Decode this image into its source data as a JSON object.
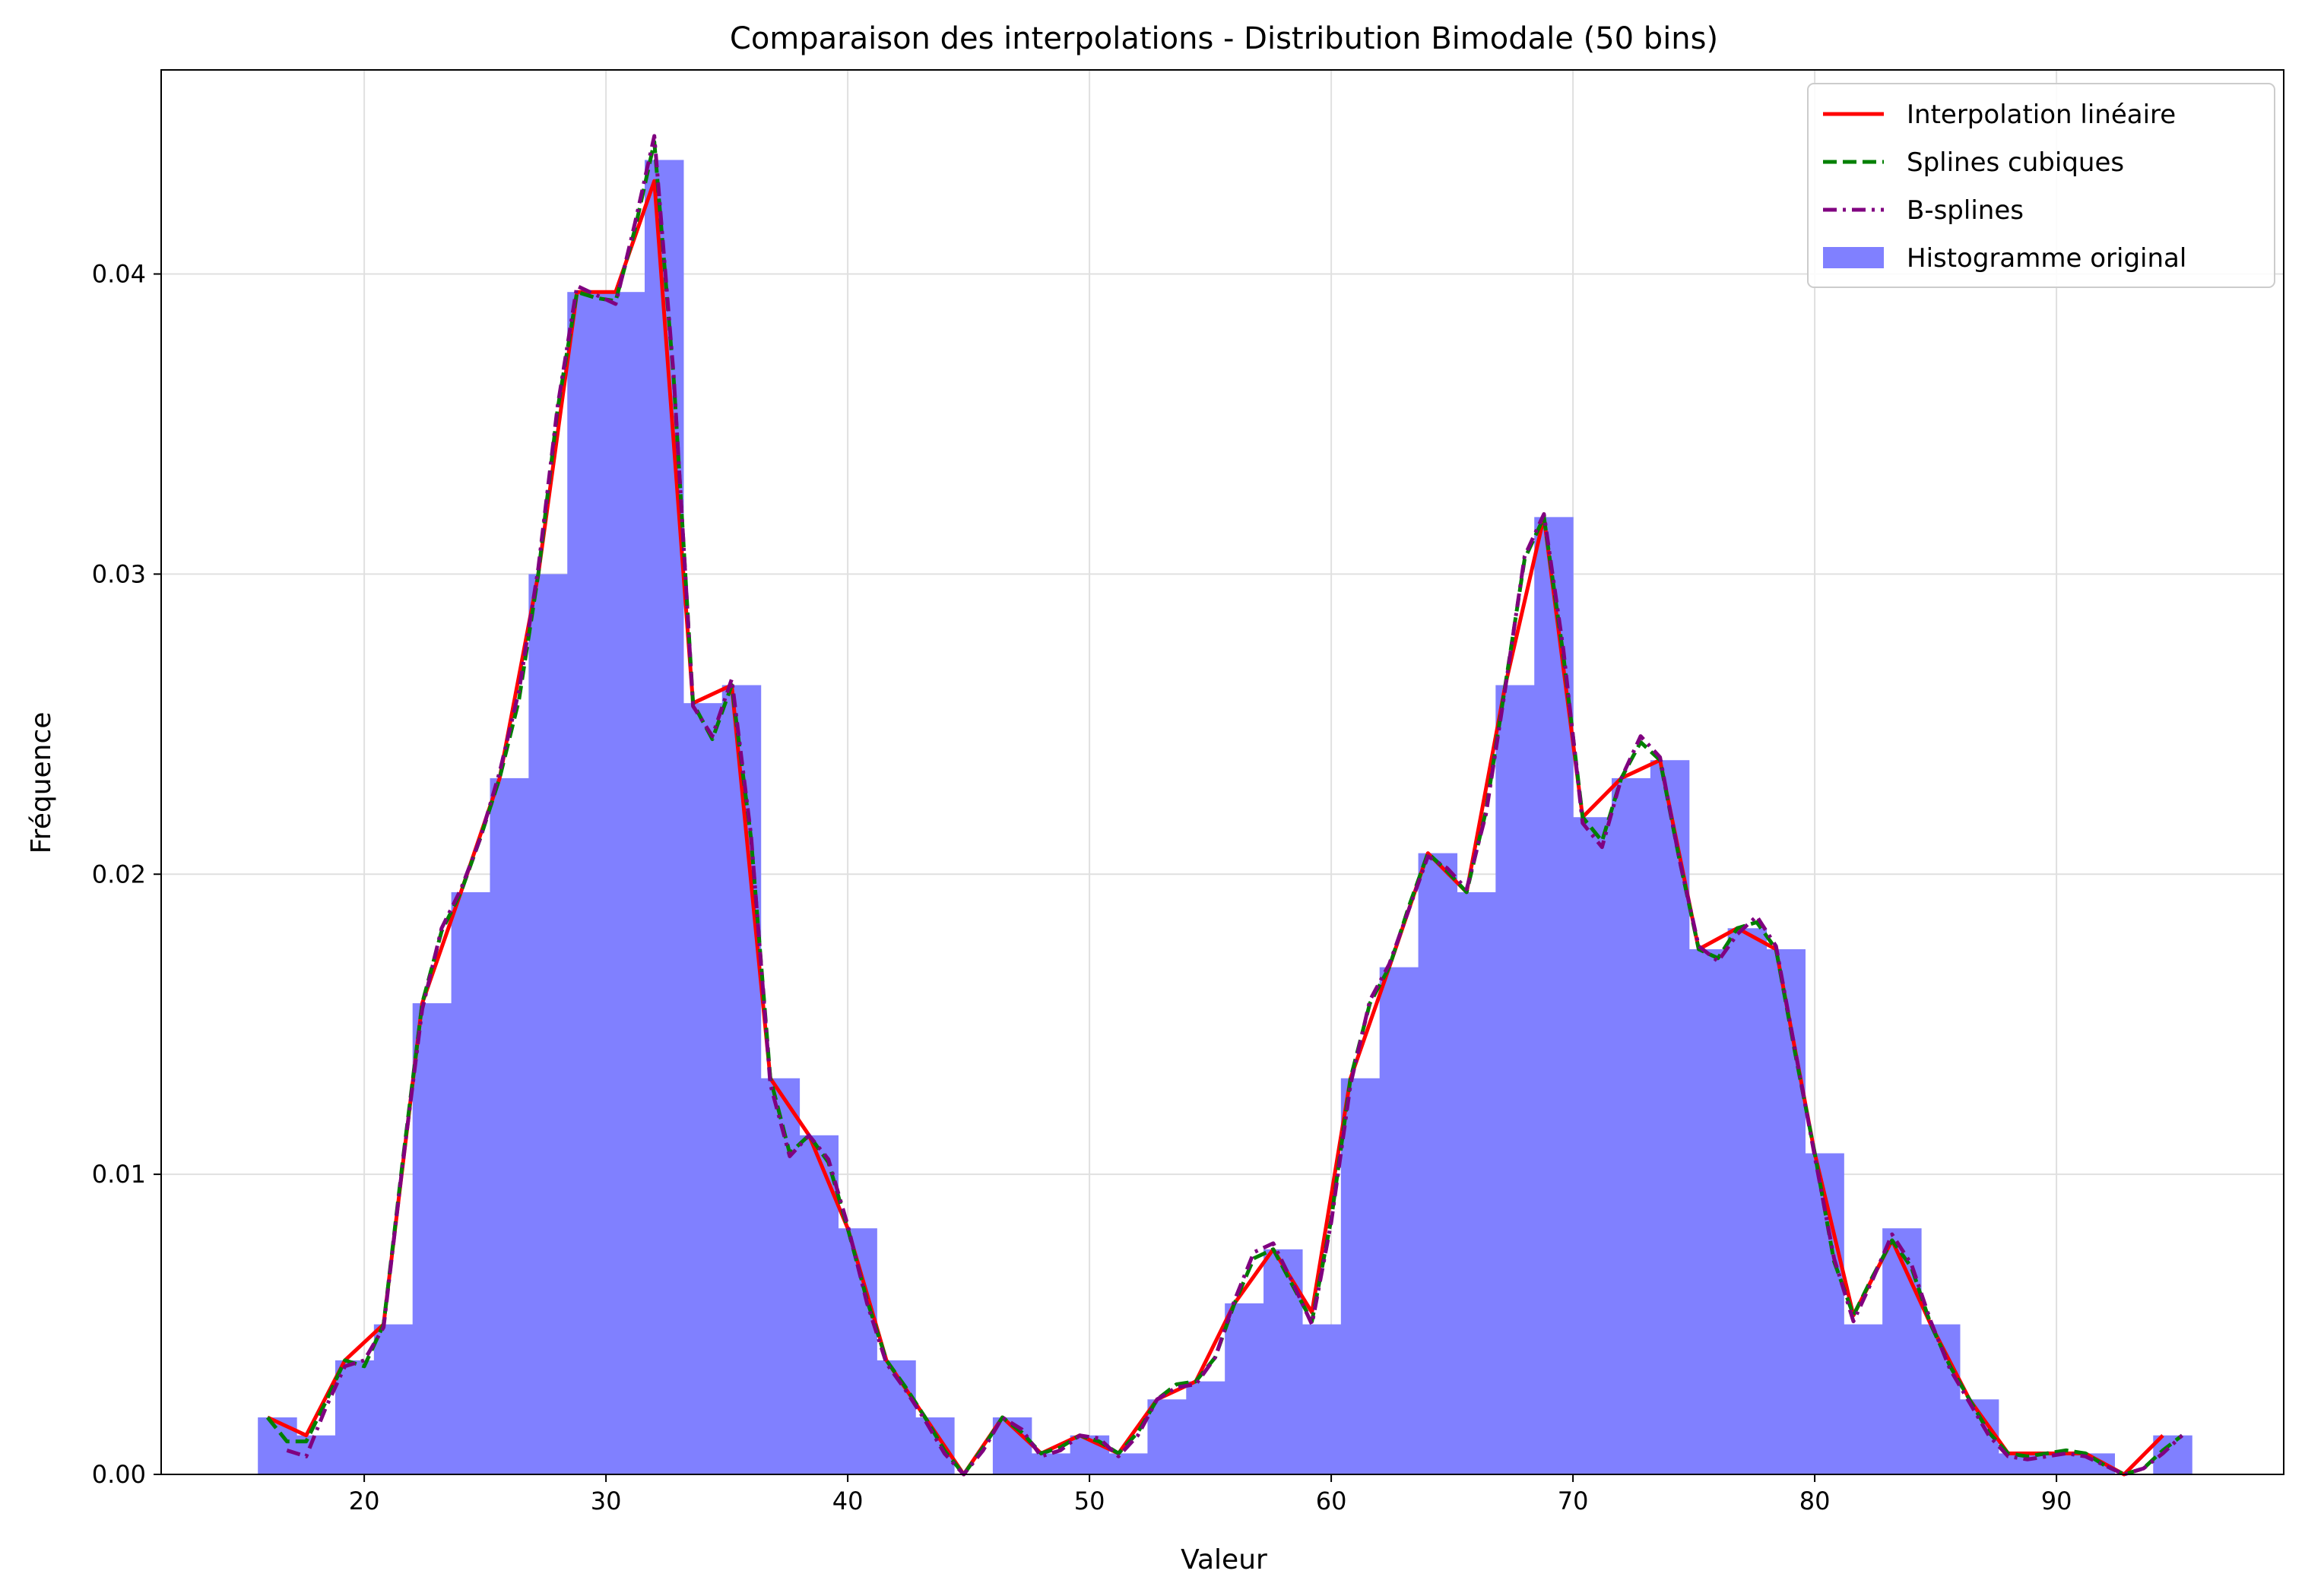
{
  "chart_data": {
    "type": "bar",
    "title": "Comparaison des interpolations - Distribution Bimodale (50 bins)",
    "xlabel": "Valeur",
    "ylabel": "Fréquence",
    "xlim": [
      11.6,
      99.4
    ],
    "ylim": [
      0,
      0.0468
    ],
    "xticks": [
      20,
      30,
      40,
      50,
      60,
      70,
      80,
      90
    ],
    "yticks": [
      0,
      0.01,
      0.02,
      0.03,
      0.04
    ],
    "ytick_labels": [
      "0.00",
      "0.01",
      "0.02",
      "0.03",
      "0.04"
    ],
    "grid": true,
    "legend_position": "top-right",
    "histogram": {
      "name": "Histogramme original",
      "color": "#8080ff",
      "bin_edges": [
        15.6,
        17.2,
        18.8,
        20.4,
        22.0,
        23.6,
        25.2,
        26.8,
        28.4,
        30.0,
        31.6,
        33.2,
        34.8,
        36.4,
        38.0,
        39.6,
        41.2,
        42.8,
        44.4,
        46.0,
        47.6,
        49.2,
        50.8,
        52.4,
        54.0,
        55.6,
        57.2,
        58.8,
        60.4,
        62.0,
        63.6,
        65.2,
        66.8,
        68.4,
        70.0,
        71.6,
        73.2,
        74.8,
        76.4,
        78.0,
        79.6,
        81.2,
        82.8,
        84.4,
        86.0,
        87.6,
        89.2,
        90.8,
        92.4,
        94.0,
        95.6
      ],
      "values": [
        0.0019,
        0.0013,
        0.0038,
        0.005,
        0.0157,
        0.0194,
        0.0232,
        0.03,
        0.0394,
        0.0394,
        0.0438,
        0.0257,
        0.0263,
        0.0132,
        0.0113,
        0.0082,
        0.0038,
        0.0019,
        0.0,
        0.0019,
        0.0007,
        0.0013,
        0.0007,
        0.0025,
        0.0031,
        0.0057,
        0.0075,
        0.005,
        0.0132,
        0.0169,
        0.0207,
        0.0194,
        0.0263,
        0.0319,
        0.0219,
        0.0232,
        0.0238,
        0.0175,
        0.0182,
        0.0175,
        0.0107,
        0.005,
        0.0082,
        0.005,
        0.0025,
        0.0007,
        0.0007,
        0.0007,
        0.0,
        0.0013
      ]
    },
    "series": [
      {
        "name": "Interpolation linéaire",
        "color": "#ff0000",
        "style": "solid",
        "x": [
          16.0,
          17.6,
          19.2,
          20.8,
          22.4,
          24.0,
          25.6,
          27.2,
          28.8,
          30.4,
          32.0,
          33.6,
          35.2,
          36.8,
          38.4,
          40.0,
          41.6,
          43.2,
          44.8,
          46.4,
          48.0,
          49.6,
          51.2,
          52.8,
          54.4,
          56.0,
          57.6,
          59.2,
          60.8,
          62.4,
          64.0,
          65.6,
          67.2,
          68.8,
          70.4,
          72.0,
          73.6,
          75.2,
          76.8,
          78.4,
          80.0,
          81.6,
          83.2,
          84.8,
          86.4,
          88.0,
          89.6,
          91.2,
          92.8,
          94.4
        ],
        "y": [
          0.0019,
          0.0013,
          0.0038,
          0.005,
          0.0157,
          0.0194,
          0.0232,
          0.03,
          0.0394,
          0.0394,
          0.0431,
          0.0257,
          0.0263,
          0.0132,
          0.0113,
          0.0082,
          0.0038,
          0.0019,
          0.0,
          0.0019,
          0.0007,
          0.0013,
          0.0007,
          0.0025,
          0.0031,
          0.0057,
          0.0075,
          0.0054,
          0.0132,
          0.0169,
          0.0207,
          0.0194,
          0.0263,
          0.0319,
          0.0219,
          0.0232,
          0.0238,
          0.0175,
          0.0182,
          0.0175,
          0.0107,
          0.0053,
          0.0078,
          0.005,
          0.0025,
          0.0007,
          0.0007,
          0.0007,
          0.0,
          0.0013
        ]
      },
      {
        "name": "Splines cubiques",
        "color": "#008000",
        "style": "dashed",
        "x": [
          16.0,
          16.8,
          17.6,
          18.4,
          19.2,
          20.0,
          20.8,
          21.6,
          22.4,
          23.2,
          24.0,
          24.8,
          25.6,
          26.4,
          27.2,
          28.0,
          28.8,
          29.6,
          30.4,
          31.2,
          32.0,
          32.8,
          33.6,
          34.4,
          35.2,
          36.0,
          36.8,
          37.6,
          38.4,
          39.2,
          40.0,
          40.8,
          41.6,
          42.4,
          43.2,
          44.0,
          44.8,
          45.6,
          46.4,
          47.2,
          48.0,
          48.8,
          49.6,
          50.4,
          51.2,
          52.0,
          52.8,
          53.6,
          54.4,
          55.2,
          56.0,
          56.8,
          57.6,
          58.4,
          59.2,
          60.0,
          60.8,
          61.6,
          62.4,
          63.2,
          64.0,
          64.8,
          65.6,
          66.4,
          67.2,
          68.0,
          68.8,
          69.6,
          70.4,
          71.2,
          72.0,
          72.8,
          73.6,
          74.4,
          75.2,
          76.0,
          76.8,
          77.6,
          78.4,
          79.2,
          80.0,
          80.8,
          81.6,
          82.4,
          83.2,
          84.0,
          84.8,
          85.6,
          86.4,
          87.2,
          88.0,
          88.8,
          89.6,
          90.4,
          91.2,
          92.0,
          92.8,
          93.6,
          94.4,
          95.2
        ],
        "y": [
          0.0019,
          0.0011,
          0.0011,
          0.0024,
          0.0038,
          0.0036,
          0.005,
          0.0105,
          0.0157,
          0.0181,
          0.0194,
          0.0212,
          0.0232,
          0.0258,
          0.03,
          0.0355,
          0.0394,
          0.0392,
          0.0391,
          0.0415,
          0.0444,
          0.0365,
          0.0257,
          0.0245,
          0.0263,
          0.0212,
          0.0132,
          0.0107,
          0.0113,
          0.0104,
          0.0082,
          0.0058,
          0.0038,
          0.0029,
          0.0019,
          0.0008,
          0.0,
          0.0009,
          0.0019,
          0.0014,
          0.0007,
          0.0009,
          0.0013,
          0.0011,
          0.0007,
          0.0014,
          0.0025,
          0.003,
          0.0031,
          0.0039,
          0.0057,
          0.0072,
          0.0075,
          0.0063,
          0.0051,
          0.0085,
          0.0132,
          0.0157,
          0.0169,
          0.0189,
          0.0207,
          0.0201,
          0.0194,
          0.0221,
          0.0263,
          0.0305,
          0.0319,
          0.0273,
          0.0219,
          0.0211,
          0.0232,
          0.0244,
          0.0238,
          0.0205,
          0.0175,
          0.0172,
          0.0182,
          0.0184,
          0.0175,
          0.014,
          0.0107,
          0.0071,
          0.0053,
          0.0066,
          0.0078,
          0.0069,
          0.005,
          0.0036,
          0.0025,
          0.0014,
          0.0007,
          0.0006,
          0.0007,
          0.0008,
          0.0007,
          0.0003,
          0.0,
          0.0002,
          0.0008,
          0.0013
        ]
      },
      {
        "name": "B-splines",
        "color": "#800080",
        "style": "dashdot",
        "x": [
          16.8,
          17.6,
          18.4,
          19.2,
          20.0,
          20.8,
          21.6,
          22.4,
          23.2,
          24.0,
          24.8,
          25.6,
          26.4,
          27.2,
          28.0,
          28.8,
          29.6,
          30.4,
          31.2,
          32.0,
          32.8,
          33.6,
          34.4,
          35.2,
          36.0,
          36.8,
          37.6,
          38.4,
          39.2,
          40.0,
          40.8,
          41.6,
          42.4,
          43.2,
          44.0,
          44.8,
          45.6,
          46.4,
          47.2,
          48.0,
          48.8,
          49.6,
          50.4,
          51.2,
          52.0,
          52.8,
          53.6,
          54.4,
          55.2,
          56.0,
          56.8,
          57.6,
          58.4,
          59.2,
          60.0,
          60.8,
          61.6,
          62.4,
          63.2,
          64.0,
          64.8,
          65.6,
          66.4,
          67.2,
          68.0,
          68.8,
          69.6,
          70.4,
          71.2,
          72.0,
          72.8,
          73.6,
          74.4,
          75.2,
          76.0,
          76.8,
          77.6,
          78.4,
          79.2,
          80.0,
          80.8,
          81.6,
          82.4,
          83.2,
          84.0,
          84.8,
          85.6,
          86.4,
          87.2,
          88.0,
          88.8,
          89.6,
          90.4,
          91.2,
          92.0,
          92.8,
          93.6,
          94.4,
          95.2
        ],
        "y": [
          0.0008,
          0.0006,
          0.0022,
          0.0036,
          0.0038,
          0.0049,
          0.0104,
          0.0155,
          0.0182,
          0.0195,
          0.0212,
          0.0234,
          0.0261,
          0.0302,
          0.0356,
          0.0396,
          0.0393,
          0.039,
          0.0417,
          0.0446,
          0.0366,
          0.0256,
          0.0246,
          0.0265,
          0.0213,
          0.013,
          0.0106,
          0.0113,
          0.0105,
          0.0083,
          0.0057,
          0.0037,
          0.0028,
          0.0018,
          0.0007,
          0.0,
          0.0008,
          0.0019,
          0.0015,
          0.0006,
          0.0008,
          0.0013,
          0.0012,
          0.0006,
          0.0013,
          0.0025,
          0.0029,
          0.003,
          0.0039,
          0.0058,
          0.0074,
          0.0077,
          0.0064,
          0.005,
          0.0084,
          0.013,
          0.0158,
          0.017,
          0.0188,
          0.0206,
          0.0202,
          0.0195,
          0.022,
          0.0262,
          0.0306,
          0.032,
          0.0275,
          0.0217,
          0.0209,
          0.0232,
          0.0246,
          0.0239,
          0.0205,
          0.0176,
          0.0171,
          0.018,
          0.0186,
          0.0176,
          0.0141,
          0.0106,
          0.0072,
          0.0051,
          0.0065,
          0.008,
          0.007,
          0.0051,
          0.0035,
          0.0024,
          0.0013,
          0.0006,
          0.0005,
          0.0006,
          0.0007,
          0.0006,
          0.0003,
          0.0,
          0.0002,
          0.0007,
          0.0013
        ]
      }
    ]
  }
}
